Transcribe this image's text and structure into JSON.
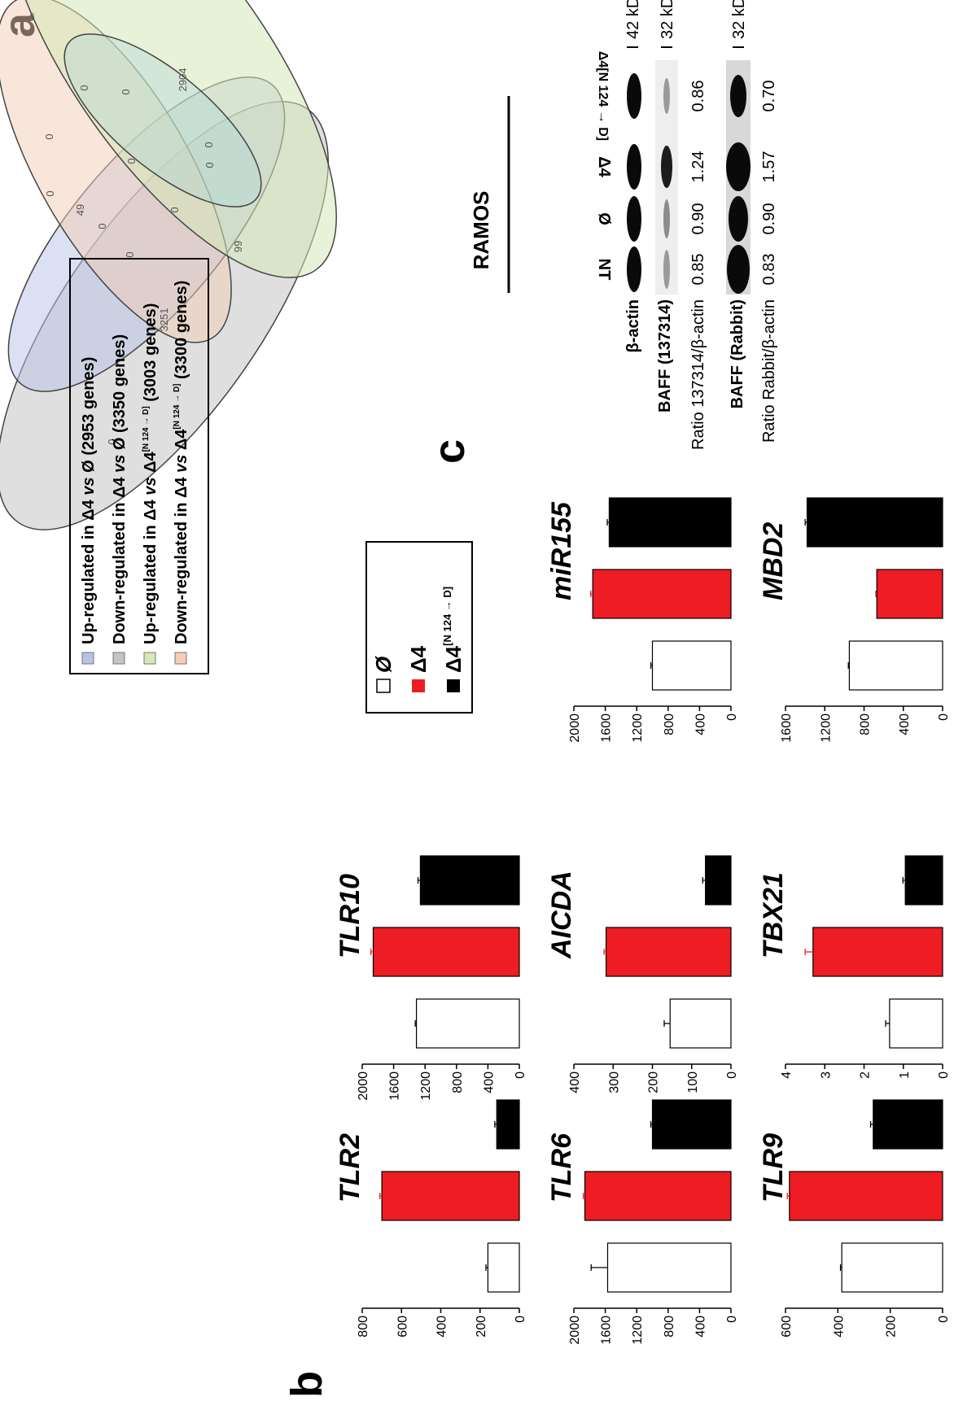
{
  "figure": {
    "panel_labels": [
      "a",
      "b",
      "c"
    ],
    "legend_a": [
      {
        "pre": "Up-regulated in Δ4 ",
        "vs": "vs",
        "post": " Ø (2953 genes)",
        "sup": "",
        "tail": "",
        "color": "#b7c2e6"
      },
      {
        "pre": "Down-regulated in Δ4 ",
        "vs": "vs",
        "post": " Ø (3350 genes)",
        "sup": "",
        "tail": "",
        "color": "#c4c4c4"
      },
      {
        "pre": "Up-regulated in Δ4 ",
        "vs": "vs",
        "post": " Δ4",
        "sup": "[N 124 → D]",
        "tail": " (3003 genes)",
        "color": "#d6e8b8"
      },
      {
        "pre": "Down-regulated in Δ4 ",
        "vs": "vs",
        "post": " Δ4",
        "sup": "[N 124 → D]",
        "tail": " (3300 genes)",
        "color": "#f4cdb6"
      }
    ],
    "venn_counts": [
      "0",
      "0",
      "0",
      "0",
      "0",
      "49",
      "0",
      "2904",
      "0",
      "0",
      "3251",
      "0",
      "0",
      "0",
      "99",
      "0"
    ],
    "legend_b": [
      {
        "label": "Ø",
        "sup": "",
        "fill": "#ffffff"
      },
      {
        "label": "Δ4",
        "sup": "",
        "fill": "#ee1d23"
      },
      {
        "label": "Δ4",
        "sup": "[N 124 → D]",
        "fill": "#000000"
      }
    ],
    "blot": {
      "title": "RAMOS",
      "lanes": [
        "NT",
        "Ø",
        "Δ4",
        "Δ4[N 124 → D]"
      ],
      "rows": [
        {
          "label": "β-actin",
          "kda": "42 kDa"
        },
        {
          "label": "BAFF (137314)",
          "kda": "32 kDa"
        },
        {
          "label": "BAFF (Rabbit)",
          "kda": "32 kDa"
        }
      ],
      "ratio_rows": [
        {
          "label": "Ratio 137314/β-actin",
          "values": [
            "0.85",
            "0.90",
            "1.24",
            "0.86"
          ]
        },
        {
          "label": "Ratio Rabbit/β-actin",
          "values": [
            "0.83",
            "0.90",
            "1.57",
            "0.70"
          ]
        }
      ]
    }
  },
  "chart_data": [
    {
      "type": "bar",
      "title": "TLR2",
      "categories": [
        "Ø",
        "Δ4",
        "Δ4[N 124 → D]"
      ],
      "values": [
        160,
        700,
        115
      ],
      "errors": [
        10,
        10,
        10
      ],
      "ylim": [
        0,
        800
      ],
      "ticks": [
        "0",
        "200",
        "400",
        "600",
        "800"
      ]
    },
    {
      "type": "bar",
      "title": "TLR10",
      "categories": [
        "Ø",
        "Δ4",
        "Δ4[N 124 → D]"
      ],
      "values": [
        1310,
        1860,
        1260
      ],
      "errors": [
        15,
        30,
        30
      ],
      "ylim": [
        0,
        2000
      ],
      "ticks": [
        "0",
        "400",
        "800",
        "1200",
        "1600",
        "2000"
      ]
    },
    {
      "type": "bar",
      "title": "TLR6",
      "categories": [
        "Ø",
        "Δ4",
        "Δ4[N 124 → D]"
      ],
      "values": [
        1570,
        1860,
        1000
      ],
      "errors": [
        210,
        20,
        20
      ],
      "ylim": [
        0,
        2000
      ],
      "ticks": [
        "0",
        "400",
        "800",
        "1200",
        "1600",
        "2000"
      ]
    },
    {
      "type": "bar",
      "title": "AICDA",
      "categories": [
        "Ø",
        "Δ4",
        "Δ4[N 124 → D]"
      ],
      "values": [
        155,
        318,
        65
      ],
      "errors": [
        15,
        5,
        7
      ],
      "ylim": [
        0,
        400
      ],
      "ticks": [
        "0",
        "100",
        "200",
        "300",
        "400"
      ]
    },
    {
      "type": "bar",
      "title": "miR155",
      "categories": [
        "Ø",
        "Δ4",
        "Δ4[N 124 → D]"
      ],
      "values": [
        1000,
        1760,
        1550
      ],
      "errors": [
        20,
        25,
        25
      ],
      "ylim": [
        0,
        2000
      ],
      "ticks": [
        "0",
        "400",
        "800",
        "1200",
        "1600",
        "2000"
      ]
    },
    {
      "type": "bar",
      "title": "TLR9",
      "categories": [
        "Ø",
        "Δ4",
        "Δ4[N 124 → D]"
      ],
      "values": [
        385,
        585,
        265
      ],
      "errors": [
        5,
        8,
        10
      ],
      "ylim": [
        0,
        600
      ],
      "ticks": [
        "0",
        "200",
        "400",
        "600"
      ]
    },
    {
      "type": "bar",
      "title": "TBX21",
      "categories": [
        "Ø",
        "Δ4",
        "Δ4[N 124 → D]"
      ],
      "values": [
        1.35,
        3.3,
        0.95
      ],
      "errors": [
        0.1,
        0.2,
        0.06
      ],
      "ylim": [
        0,
        4
      ],
      "ticks": [
        "0",
        "1",
        "2",
        "3",
        "4"
      ]
    },
    {
      "type": "bar",
      "title": "MBD2",
      "categories": [
        "Ø",
        "Δ4",
        "Δ4[N 124 → D]"
      ],
      "values": [
        950,
        670,
        1380
      ],
      "errors": [
        10,
        10,
        20
      ],
      "ylim": [
        0,
        1600
      ],
      "ticks": [
        "0",
        "400",
        "800",
        "1200",
        "1600"
      ]
    }
  ]
}
